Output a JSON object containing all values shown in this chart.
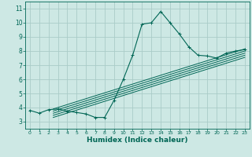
{
  "title": "",
  "xlabel": "Humidex (Indice chaleur)",
  "ylabel": "",
  "background_color": "#cde8e4",
  "grid_color": "#aaccc8",
  "line_color": "#006655",
  "xlim": [
    -0.5,
    23.5
  ],
  "ylim": [
    2.5,
    11.5
  ],
  "xticks": [
    0,
    1,
    2,
    3,
    4,
    5,
    6,
    7,
    8,
    9,
    10,
    11,
    12,
    13,
    14,
    15,
    16,
    17,
    18,
    19,
    20,
    21,
    22,
    23
  ],
  "yticks": [
    3,
    4,
    5,
    6,
    7,
    8,
    9,
    10,
    11
  ],
  "main_x": [
    0,
    1,
    2,
    3,
    4,
    5,
    6,
    7,
    8,
    9,
    10,
    11,
    12,
    13,
    14,
    15,
    16,
    17,
    18,
    19,
    20,
    21,
    22,
    23
  ],
  "main_y": [
    3.8,
    3.6,
    3.85,
    3.9,
    3.75,
    3.65,
    3.55,
    3.3,
    3.3,
    4.5,
    6.0,
    7.7,
    9.9,
    10.0,
    10.8,
    10.0,
    9.2,
    8.3,
    7.7,
    7.65,
    7.5,
    7.85,
    8.0,
    8.1
  ],
  "regression_lines": [
    {
      "x0": 2.5,
      "y0": 3.9,
      "x1": 23,
      "y1": 8.15
    },
    {
      "x0": 2.5,
      "y0": 3.75,
      "x1": 23,
      "y1": 8.0
    },
    {
      "x0": 2.5,
      "y0": 3.6,
      "x1": 23,
      "y1": 7.85
    },
    {
      "x0": 2.5,
      "y0": 3.45,
      "x1": 23,
      "y1": 7.7
    },
    {
      "x0": 2.5,
      "y0": 3.3,
      "x1": 23,
      "y1": 7.55
    }
  ]
}
